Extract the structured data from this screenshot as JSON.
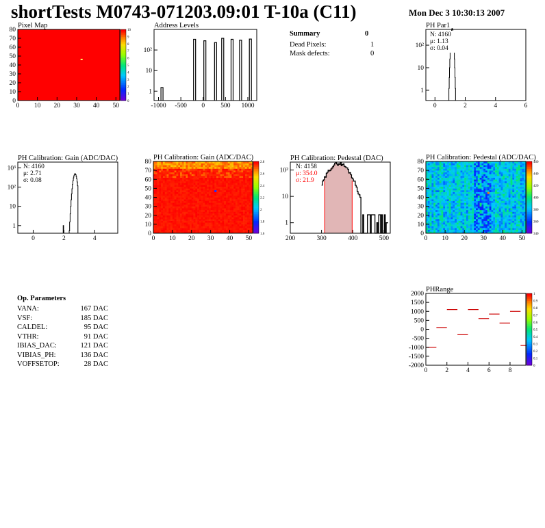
{
  "header": {
    "title": "shortTests M0743-071203.09:01 T-10a (C11)",
    "date": "Mon Dec  3 10:30:13 2007"
  },
  "colors": {
    "map_fill": "#ff0000",
    "hist_line": "#000000",
    "stat_red": "#ff0000",
    "pedestal_fill": "#c87a7a",
    "phrange_mark": "#cc0000"
  },
  "summary": {
    "title": "Summary",
    "count": "0",
    "rows": [
      {
        "label": "Dead Pixels:",
        "value": "1"
      },
      {
        "label": "Mask defects:",
        "value": "0"
      }
    ]
  },
  "params": {
    "title": "Op. Parameters",
    "rows": [
      {
        "label": "VANA:",
        "value": "167 DAC"
      },
      {
        "label": "VSF:",
        "value": "185 DAC"
      },
      {
        "label": "CALDEL:",
        "value": "95 DAC"
      },
      {
        "label": "VTHR:",
        "value": "91 DAC"
      },
      {
        "label": "IBIAS_DAC:",
        "value": "121 DAC"
      },
      {
        "label": "VIBIAS_PH:",
        "value": "136 DAC"
      },
      {
        "label": "VOFFSETOP:",
        "value": "28 DAC"
      }
    ]
  },
  "chart_data": [
    {
      "id": "pixmap",
      "type": "heatmap",
      "title": "Pixel Map",
      "xlim": [
        0,
        52
      ],
      "ylim": [
        0,
        80
      ],
      "xticks": [
        "0",
        "10",
        "20",
        "30",
        "40",
        "50"
      ],
      "yticks": [
        "0",
        "10",
        "20",
        "30",
        "40",
        "50",
        "60",
        "70",
        "80"
      ],
      "zticks": [
        "0",
        "1",
        "2",
        "3",
        "4",
        "5",
        "6",
        "7",
        "8",
        "9",
        "10"
      ],
      "hot_pixels": [
        {
          "col": 32,
          "row": 46,
          "label": "dead"
        }
      ]
    },
    {
      "id": "addr",
      "type": "bar",
      "title": "Address Levels",
      "xlim": [
        -1100,
        1200
      ],
      "yscale": "log",
      "xticks": [
        "-1000",
        "-500",
        "0",
        "500",
        "1000"
      ],
      "yticks": [
        "1",
        "10",
        "10²"
      ],
      "peaks": [
        {
          "x": -930,
          "y": 1.5
        },
        {
          "x": -200,
          "y": 330
        },
        {
          "x": 30,
          "y": 280
        },
        {
          "x": 270,
          "y": 230
        },
        {
          "x": 430,
          "y": 370
        },
        {
          "x": 640,
          "y": 330
        },
        {
          "x": 830,
          "y": 300
        },
        {
          "x": 1050,
          "y": 340
        }
      ]
    },
    {
      "id": "phpar1",
      "type": "line",
      "title": "PH Par1",
      "xlim": [
        -0.6,
        6
      ],
      "yscale": "log",
      "xticks": [
        "0",
        "2",
        "4",
        "6"
      ],
      "yticks": [
        "1",
        "10",
        "10²"
      ],
      "stats": [
        "N: 4160",
        "μ: 1.13",
        "σ: 0.04"
      ]
    },
    {
      "id": "gain",
      "type": "line",
      "title": "PH Calibration: Gain (ADC/DAC)",
      "xlim": [
        -1,
        5.5
      ],
      "yscale": "log",
      "xticks": [
        "0",
        "2",
        "4"
      ],
      "yticks": [
        "1",
        "10",
        "10²",
        "10³"
      ],
      "stats": [
        "N: 4160",
        "μ: 2.71",
        "σ: 0.08"
      ]
    },
    {
      "id": "gainmap",
      "type": "heatmap",
      "title": "PH Calibration: Gain (ADC/DAC)",
      "xlim": [
        0,
        52
      ],
      "ylim": [
        0,
        80
      ],
      "xticks": [
        "0",
        "10",
        "20",
        "30",
        "40",
        "50"
      ],
      "yticks": [
        "0",
        "10",
        "20",
        "30",
        "40",
        "50",
        "60",
        "70",
        "80"
      ],
      "zticks": [
        "1.6",
        "1.8",
        "2",
        "2.2",
        "2.4",
        "2.6",
        "2.8"
      ]
    },
    {
      "id": "ped",
      "type": "line",
      "title": "PH Calibration: Pedestal (DAC)",
      "xlim": [
        200,
        520
      ],
      "yscale": "log",
      "xticks": [
        "200",
        "300",
        "400",
        "500"
      ],
      "yticks": [
        "1",
        "10",
        "10²"
      ],
      "stats": [
        "N: 4158"
      ],
      "stats_red": [
        "μ: 354.0",
        "σ: 21.9"
      ],
      "fit_lines": [
        310,
        398
      ]
    },
    {
      "id": "pedmap",
      "type": "heatmap",
      "title": "PH Calibration: Pedestal (ADC/DAC)",
      "xlim": [
        0,
        52
      ],
      "ylim": [
        0,
        80
      ],
      "xticks": [
        "0",
        "10",
        "20",
        "30",
        "40",
        "50"
      ],
      "yticks": [
        "0",
        "10",
        "20",
        "30",
        "40",
        "50",
        "60",
        "70",
        "80"
      ],
      "zticks": [
        "340",
        "360",
        "380",
        "400",
        "420",
        "440",
        "460"
      ]
    },
    {
      "id": "phrange",
      "type": "scatter",
      "title": "PHRange",
      "xlim": [
        0,
        9.5
      ],
      "ylim": [
        -2000,
        2000
      ],
      "xticks": [
        "0",
        "2",
        "4",
        "6",
        "8"
      ],
      "yticks": [
        "-2000",
        "-1500",
        "-1000",
        "-500",
        "0",
        "500",
        "1000",
        "1500",
        "2000"
      ],
      "zticks": [
        "0",
        "0.1",
        "0.2",
        "0.3",
        "0.4",
        "0.5",
        "0.6",
        "0.7",
        "0.8",
        "0.9",
        "1"
      ],
      "segments": [
        {
          "x": 0.5,
          "y": -1000
        },
        {
          "x": 1.5,
          "y": 100
        },
        {
          "x": 2.5,
          "y": 1100
        },
        {
          "x": 3.5,
          "y": -300
        },
        {
          "x": 4.5,
          "y": 1100
        },
        {
          "x": 5.5,
          "y": 600
        },
        {
          "x": 6.5,
          "y": 850
        },
        {
          "x": 7.5,
          "y": 350
        },
        {
          "x": 8.5,
          "y": 1000
        },
        {
          "x": 9.5,
          "y": -900
        }
      ]
    }
  ]
}
